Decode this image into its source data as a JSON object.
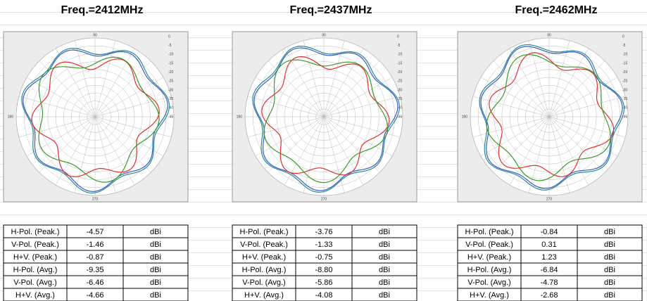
{
  "panels": [
    {
      "title": "Freq.=2412MHz",
      "polar": {
        "angle_labels": [
          "90",
          "180",
          "270"
        ],
        "ring_labels": [
          "0",
          "-5",
          "-10",
          "-15",
          "-20",
          "-25",
          "-30",
          "-35",
          "-40",
          "-45"
        ]
      },
      "table": {
        "rows": [
          [
            "H-Pol. (Peak.)",
            "-4.57",
            "dBi"
          ],
          [
            "V-Pol. (Peak.)",
            "-1.46",
            "dBi"
          ],
          [
            "H+V. (Peak.)",
            "-0.87",
            "dBi"
          ],
          [
            "H-Pol. (Avg.)",
            "-9.35",
            "dBi"
          ],
          [
            "V-Pol. (Avg.)",
            "-6.46",
            "dBi"
          ],
          [
            "H+V. (Avg.)",
            "-4.66",
            "dBi"
          ]
        ]
      }
    },
    {
      "title": "Freq.=2437MHz",
      "polar": {
        "angle_labels": [
          "90",
          "180",
          "270"
        ],
        "ring_labels": [
          "0",
          "-5",
          "-10",
          "-15",
          "-20",
          "-25",
          "-30",
          "-35",
          "-40",
          "-45"
        ]
      },
      "table": {
        "rows": [
          [
            "H-Pol. (Peak.)",
            "-3.76",
            "dBi"
          ],
          [
            "V-Pol. (Peak.)",
            "-1.33",
            "dBi"
          ],
          [
            "H+V. (Peak.)",
            "-0.75",
            "dBi"
          ],
          [
            "H-Pol. (Avg.)",
            "-8.80",
            "dBi"
          ],
          [
            "V-Pol. (Avg.)",
            "-5.86",
            "dBi"
          ],
          [
            "H+V. (Avg.)",
            "-4.08",
            "dBi"
          ]
        ]
      }
    },
    {
      "title": "Freq.=2462MHz",
      "polar": {
        "angle_labels": [
          "90",
          "180",
          "270"
        ],
        "ring_labels": [
          "0",
          "-5",
          "-10",
          "-15",
          "-20",
          "-25",
          "-30",
          "-35",
          "-40",
          "-45"
        ]
      },
      "table": {
        "rows": [
          [
            "H-Pol. (Peak.)",
            "-0.84",
            "dBi"
          ],
          [
            "V-Pol. (Peak.)",
            "0.31",
            "dBi"
          ],
          [
            "H+V. (Peak.)",
            "1.23",
            "dBi"
          ],
          [
            "H-Pol. (Avg.)",
            "-6.84",
            "dBi"
          ],
          [
            "V-Pol. (Avg.)",
            "-4.78",
            "dBi"
          ],
          [
            "H+V. (Avg.)",
            "-2.68",
            "dBi"
          ]
        ]
      }
    }
  ]
}
